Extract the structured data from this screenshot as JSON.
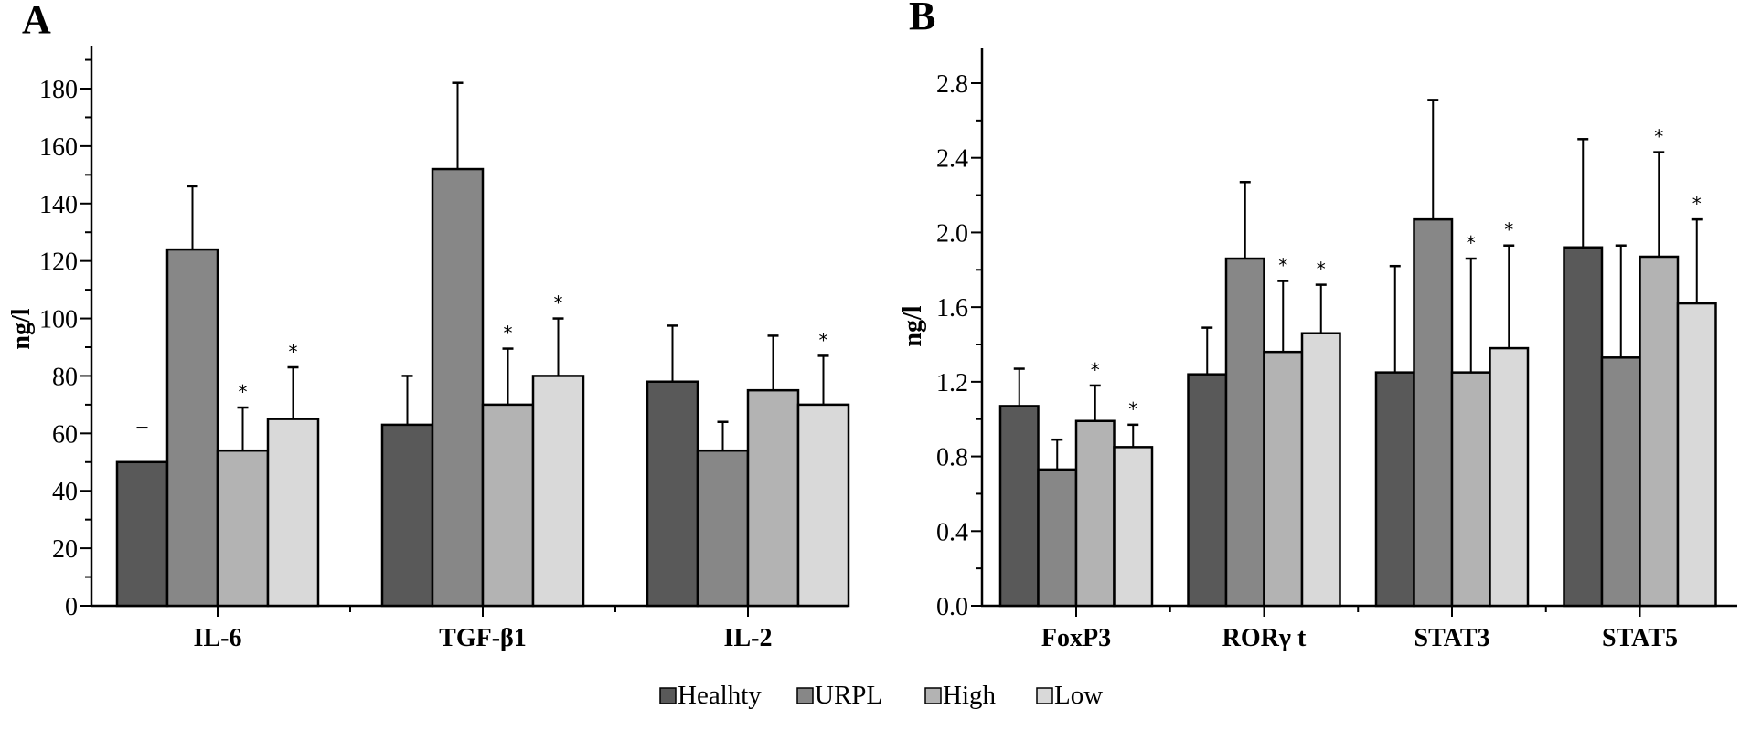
{
  "legend": {
    "items": [
      {
        "label": "Healhty",
        "color": "#595959"
      },
      {
        "label": "URPL",
        "color": "#878787"
      },
      {
        "label": "High",
        "color": "#b3b3b3"
      },
      {
        "label": "Low",
        "color": "#d9d9d9"
      }
    ],
    "placement": "bottom-center"
  },
  "chart_data": [
    {
      "type": "bar",
      "panel": "A",
      "title": "",
      "xlabel": "",
      "ylabel": "ng/l",
      "ylim": [
        0,
        195
      ],
      "yticks": [
        0,
        20,
        40,
        60,
        80,
        100,
        120,
        140,
        160,
        180
      ],
      "ytick_labels": [
        "0",
        "20",
        "40",
        "60",
        "80",
        "100",
        "120",
        "140",
        "160",
        "180"
      ],
      "grid": false,
      "categories": [
        "IL-6",
        "TGF-β1",
        "IL-2"
      ],
      "series": [
        {
          "name": "Healhty",
          "values": [
            50,
            63,
            78
          ],
          "error_upper": [
            62,
            80,
            97.5
          ],
          "significance": [
            "-",
            "",
            ""
          ]
        },
        {
          "name": "URPL",
          "values": [
            124,
            152,
            54
          ],
          "error_upper": [
            146,
            182,
            64
          ],
          "significance": [
            "",
            "",
            ""
          ]
        },
        {
          "name": "High",
          "values": [
            54,
            70,
            75
          ],
          "error_upper": [
            69,
            89.5,
            94
          ],
          "significance": [
            "*",
            "*",
            ""
          ]
        },
        {
          "name": "Low",
          "values": [
            65,
            80,
            70
          ],
          "error_upper": [
            83,
            100,
            87
          ],
          "significance": [
            "*",
            "*",
            "*"
          ]
        }
      ]
    },
    {
      "type": "bar",
      "panel": "B",
      "title": "",
      "xlabel": "",
      "ylabel": "ng/l",
      "ylim": [
        0,
        3.0
      ],
      "yticks": [
        0,
        0.4,
        0.8,
        1.2,
        1.6,
        2.0,
        2.4,
        2.8
      ],
      "ytick_labels": [
        "0.0",
        "0.4",
        "0.8",
        "1.2",
        "1.6",
        "2.0",
        "2.4",
        "2.8"
      ],
      "grid": false,
      "categories": [
        "FoxP3",
        "RORγ t",
        "STAT3",
        "STAT5"
      ],
      "series": [
        {
          "name": "Healhty",
          "values": [
            1.07,
            1.24,
            1.25,
            1.92
          ],
          "error_upper": [
            1.27,
            1.49,
            1.82,
            2.5
          ],
          "significance": [
            "",
            "",
            "",
            ""
          ]
        },
        {
          "name": "URPL",
          "values": [
            0.73,
            1.86,
            2.07,
            1.33
          ],
          "error_upper": [
            0.89,
            2.27,
            2.71,
            1.93
          ],
          "significance": [
            "",
            "",
            "",
            ""
          ]
        },
        {
          "name": "High",
          "values": [
            0.99,
            1.36,
            1.25,
            1.87
          ],
          "error_upper": [
            1.18,
            1.74,
            1.86,
            2.43
          ],
          "significance": [
            "*",
            "*",
            "*",
            "*"
          ]
        },
        {
          "name": "Low",
          "values": [
            0.85,
            1.46,
            1.38,
            1.62
          ],
          "error_upper": [
            0.97,
            1.72,
            1.93,
            2.07
          ],
          "significance": [
            "*",
            "*",
            "*",
            "*"
          ]
        }
      ]
    }
  ]
}
